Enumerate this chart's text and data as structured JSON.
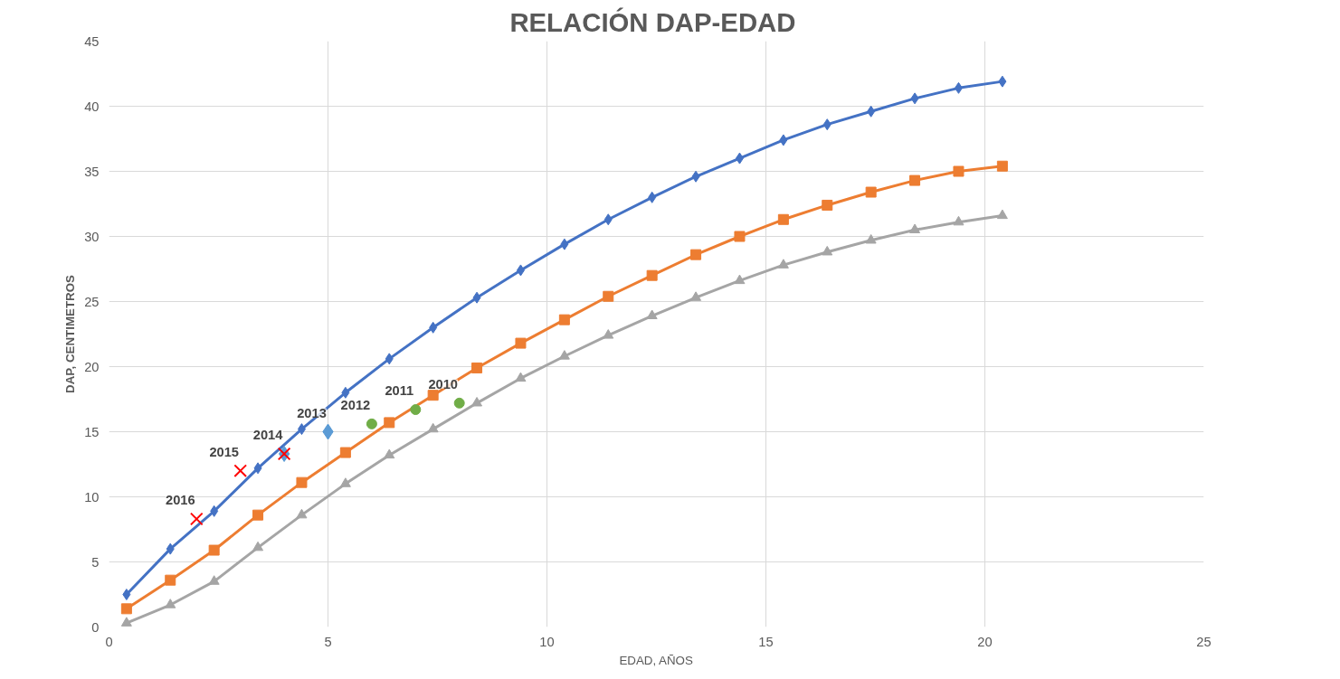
{
  "chart_data": {
    "type": "line",
    "title": "RELACIÓN  DAP-EDAD",
    "xlabel": "EDAD, AÑOS",
    "ylabel": "DAP, CENTIMETROS",
    "xlim": [
      0,
      25
    ],
    "xticks": [
      0,
      5,
      10,
      15,
      20,
      25
    ],
    "ylim": [
      0,
      45
    ],
    "yticks": [
      0,
      5,
      10,
      15,
      20,
      25,
      30,
      35,
      40,
      45
    ],
    "grid": true,
    "x": [
      0.4,
      1.4,
      2.4,
      3.4,
      4.4,
      5.4,
      6.4,
      7.4,
      8.4,
      9.4,
      10.4,
      11.4,
      12.4,
      13.4,
      14.4,
      15.4,
      16.4,
      17.4,
      18.4,
      19.4,
      20.4
    ],
    "series": [
      {
        "color": "#4472c4",
        "marker": "diamond",
        "values": [
          2.5,
          6.0,
          8.9,
          12.2,
          15.2,
          18.0,
          20.6,
          23.0,
          25.3,
          27.4,
          29.4,
          31.3,
          33.0,
          34.6,
          36.0,
          37.4,
          38.6,
          39.6,
          40.6,
          41.4,
          41.9
        ]
      },
      {
        "color": "#ed7d31",
        "marker": "square",
        "values": [
          1.4,
          3.6,
          5.9,
          8.6,
          11.1,
          13.4,
          15.7,
          17.8,
          19.9,
          21.8,
          23.6,
          25.4,
          27.0,
          28.6,
          30.0,
          31.3,
          32.4,
          33.4,
          34.3,
          35.0,
          35.4
        ]
      },
      {
        "color": "#a5a5a5",
        "marker": "triangle",
        "values": [
          0.3,
          1.7,
          3.5,
          6.1,
          8.6,
          11.0,
          13.2,
          15.2,
          17.2,
          19.1,
          20.8,
          22.4,
          23.9,
          25.3,
          26.6,
          27.8,
          28.8,
          29.7,
          30.5,
          31.1,
          31.6
        ]
      },
      {
        "type": "scatter",
        "color": "#ff0000",
        "marker": "cross",
        "x": [
          2,
          3,
          4
        ],
        "values": [
          8.3,
          12.0,
          13.3
        ]
      },
      {
        "type": "scatter",
        "color": "#5b9bd5",
        "marker": "diamond",
        "x": [
          4,
          5
        ],
        "values": [
          13.3,
          15.0
        ]
      },
      {
        "type": "scatter",
        "color": "#70ad47",
        "marker": "circle",
        "x": [
          6,
          7,
          8
        ],
        "values": [
          15.6,
          16.7,
          17.2
        ]
      }
    ],
    "annotations": [
      {
        "text": "2016",
        "x": 2,
        "y": 8.3
      },
      {
        "text": "2015",
        "x": 3,
        "y": 12.0
      },
      {
        "text": "2014",
        "x": 4,
        "y": 13.3
      },
      {
        "text": "2013",
        "x": 5,
        "y": 15.0
      },
      {
        "text": "2012",
        "x": 6,
        "y": 15.6
      },
      {
        "text": "2011",
        "x": 7,
        "y": 16.7
      },
      {
        "text": "2010",
        "x": 8,
        "y": 17.2
      }
    ]
  }
}
